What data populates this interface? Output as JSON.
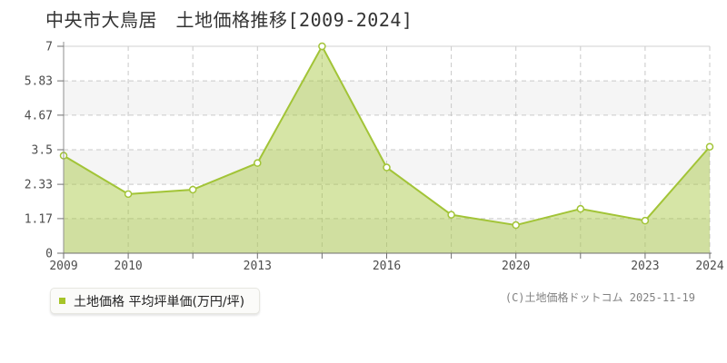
{
  "title": "中央市大鳥居　土地価格推移[2009-2024]",
  "legend": {
    "label": "土地価格 平均坪単価(万円/坪)",
    "marker_color": "#a6c428"
  },
  "footer": {
    "copyright": "(C)土地価格ドットコム 2025-11-19"
  },
  "chart_data": {
    "type": "area",
    "title": "中央市大鳥居 土地価格推移[2009-2024]",
    "series_name": "土地価格 平均坪単価(万円/坪)",
    "ylabel": "平均坪単価(万円/坪)",
    "xlabel": "",
    "x_labels": [
      "2009",
      "2010",
      "",
      "2013",
      "",
      "2016",
      "",
      "2020",
      "",
      "2023",
      "2024"
    ],
    "values": [
      3.3,
      2.0,
      2.15,
      3.05,
      7.0,
      2.9,
      1.3,
      0.95,
      1.5,
      1.1,
      3.6
    ],
    "y_ticks": [
      0,
      1.17,
      2.33,
      3.5,
      4.67,
      5.83,
      7
    ],
    "y_tick_labels": [
      "0",
      "1.17",
      "2.33",
      "3.5",
      "4.67",
      "5.83",
      "7"
    ],
    "ylim": [
      0,
      7
    ],
    "grid": true,
    "legend_position": "bottom-left",
    "colors": {
      "line": "#a2c437",
      "area_fill_rgba": "rgba(164,198,57,0.45)",
      "marker_fill": "#ffffff",
      "marker_stroke": "#a2c437",
      "grid_dashed": "#c9c9c9",
      "top_border": "#d0d0d0",
      "band": "#f5f5f5",
      "y_axis": "#8f8f8f",
      "x_axis": "#6f6f6f",
      "tick": "#6f6f6f",
      "tick_label": "#4d4d4d"
    }
  }
}
